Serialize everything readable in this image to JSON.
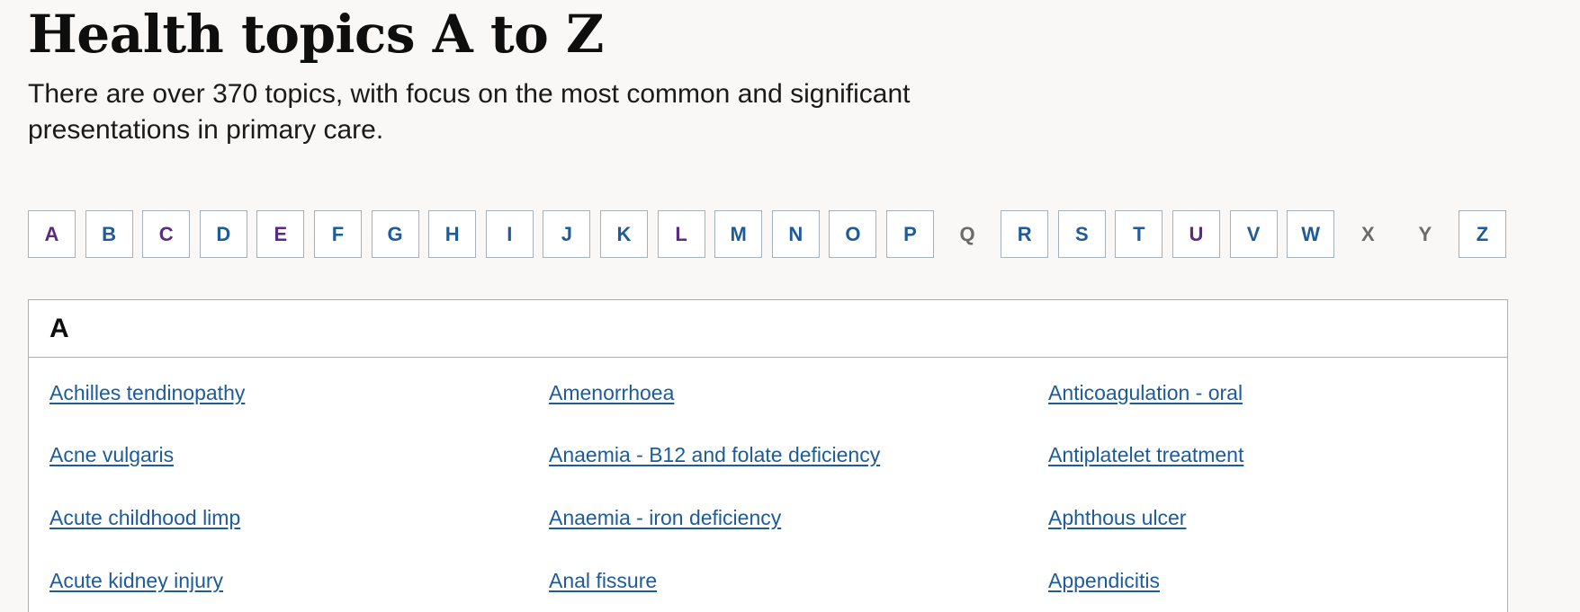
{
  "header": {
    "title": "Health topics A to Z",
    "intro_line1": "There are over 370 topics, with focus on the most common and significant",
    "intro_line2": "presentations in primary care."
  },
  "alphabet": [
    {
      "letter": "A",
      "state": "visited"
    },
    {
      "letter": "B",
      "state": "link"
    },
    {
      "letter": "C",
      "state": "visited"
    },
    {
      "letter": "D",
      "state": "link"
    },
    {
      "letter": "E",
      "state": "visited"
    },
    {
      "letter": "F",
      "state": "link"
    },
    {
      "letter": "G",
      "state": "link"
    },
    {
      "letter": "H",
      "state": "link"
    },
    {
      "letter": "I",
      "state": "link"
    },
    {
      "letter": "J",
      "state": "link"
    },
    {
      "letter": "K",
      "state": "link"
    },
    {
      "letter": "L",
      "state": "visited"
    },
    {
      "letter": "M",
      "state": "link"
    },
    {
      "letter": "N",
      "state": "link"
    },
    {
      "letter": "O",
      "state": "link"
    },
    {
      "letter": "P",
      "state": "link"
    },
    {
      "letter": "Q",
      "state": "disabled"
    },
    {
      "letter": "R",
      "state": "link"
    },
    {
      "letter": "S",
      "state": "link"
    },
    {
      "letter": "T",
      "state": "link"
    },
    {
      "letter": "U",
      "state": "visited"
    },
    {
      "letter": "V",
      "state": "link"
    },
    {
      "letter": "W",
      "state": "link"
    },
    {
      "letter": "X",
      "state": "disabled"
    },
    {
      "letter": "Y",
      "state": "disabled"
    },
    {
      "letter": "Z",
      "state": "link"
    }
  ],
  "section": {
    "heading": "A",
    "columns": [
      [
        "Achilles tendinopathy",
        "Acne vulgaris",
        "Acute childhood limp",
        "Acute kidney injury"
      ],
      [
        "Amenorrhoea",
        "Anaemia - B12 and folate deficiency",
        "Anaemia - iron deficiency",
        "Anal fissure"
      ],
      [
        "Anticoagulation - oral",
        "Antiplatelet treatment",
        "Aphthous ulcer",
        "Appendicitis"
      ]
    ]
  },
  "colors": {
    "link": "#1d5b9a",
    "visited": "#5b2a86",
    "disabled": "#6b6b6b",
    "border": "#a9b1b8",
    "page_background": "#f9f8f7"
  }
}
